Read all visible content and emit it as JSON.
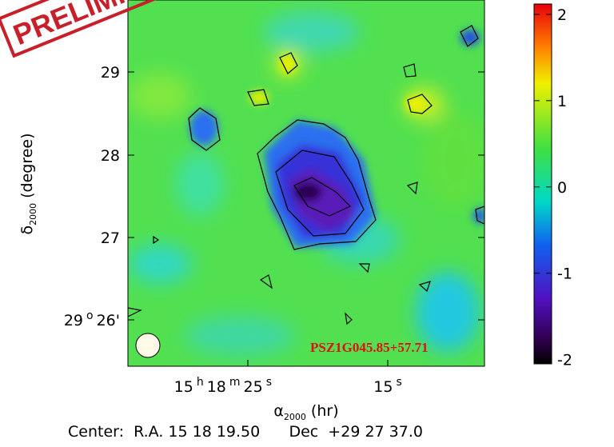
{
  "stamp": "PRELIMINARY",
  "map": {
    "y_label": {
      "symbol": "δ",
      "sub": "2000",
      "text": "(degree)"
    },
    "x_label": {
      "symbol": "α",
      "sub": "2000",
      "text": "(hr)"
    },
    "y_ticks": [
      {
        "parts": [
          "29"
        ]
      },
      {
        "parts": [
          "28"
        ]
      },
      {
        "parts": [
          "27"
        ]
      },
      {
        "parts": [
          "29",
          "o",
          "26'"
        ]
      }
    ],
    "x_ticks": [
      {
        "parts": [
          "15",
          "h",
          "18",
          "m",
          "25",
          "s"
        ]
      },
      {
        "parts": [
          "15",
          "s"
        ]
      }
    ],
    "source": "PSZ1G045.85+57.71",
    "center": "Center:  R.A. 15 18 19.50      Dec  +29 27 37.0"
  },
  "colorbar": {
    "lim": [
      -2.05,
      2.12
    ],
    "ticks": [
      -2,
      -1,
      0,
      1,
      2
    ]
  }
}
